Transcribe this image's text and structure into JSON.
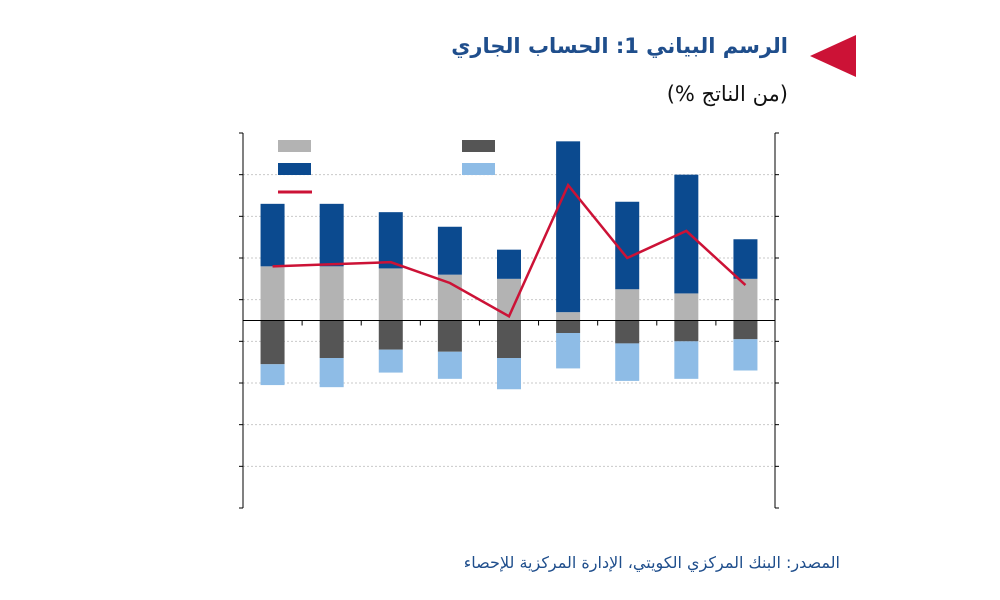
{
  "header": {
    "title": "الرسم البياني 1: الحساب الجاري",
    "subtitle": "(من الناتج %)"
  },
  "footer": {
    "source": "المصدر: البنك المركزي الكويتي، الإدارة المركزية للإحصاء"
  },
  "chart_data": {
    "type": "bar",
    "stacked": true,
    "title": "الرسم البياني 1: الحساب الجاري",
    "subtitle": "(من الناتج %)",
    "xlabel": "",
    "ylabel": "",
    "categories": [
      "",
      "",
      "",
      "",
      "",
      "",
      "",
      "",
      ""
    ],
    "ylim": [
      -9,
      9
    ],
    "grid": true,
    "gridlines_y": [
      -7,
      -5,
      -3,
      -1,
      1,
      3,
      5,
      7
    ],
    "series": [
      {
        "name": "",
        "kind": "bar",
        "stack": "positive",
        "color": "#b3b3b3",
        "values": [
          2.6,
          2.6,
          2.5,
          2.2,
          2.0,
          0.4,
          1.5,
          1.3,
          2.0
        ]
      },
      {
        "name": "",
        "kind": "bar",
        "stack": "positive",
        "color": "#0b4a8f",
        "values": [
          3.0,
          3.0,
          2.7,
          2.3,
          1.4,
          8.2,
          4.2,
          5.7,
          1.9
        ]
      },
      {
        "name": "",
        "kind": "bar",
        "stack": "negative",
        "color": "#555555",
        "values": [
          -2.1,
          -1.8,
          -1.4,
          -1.5,
          -1.8,
          -0.6,
          -1.1,
          -1.0,
          -0.9
        ]
      },
      {
        "name": "",
        "kind": "bar",
        "stack": "negative",
        "color": "#8ebce6",
        "values": [
          -1.0,
          -1.4,
          -1.1,
          -1.3,
          -1.5,
          -1.7,
          -1.8,
          -1.8,
          -1.5
        ]
      },
      {
        "name": "",
        "kind": "line",
        "color": "#cc1236",
        "values": [
          2.6,
          2.7,
          2.8,
          1.8,
          0.2,
          6.5,
          3.0,
          4.3,
          1.7
        ]
      }
    ],
    "legend": {
      "position": "top-left",
      "entries": [
        {
          "series": 0,
          "column": 0,
          "row": 0
        },
        {
          "series": 2,
          "column": 1,
          "row": 0
        },
        {
          "series": 1,
          "column": 0,
          "row": 1
        },
        {
          "series": 3,
          "column": 1,
          "row": 1
        },
        {
          "series": 4,
          "column": 0,
          "row": 2
        }
      ]
    }
  }
}
